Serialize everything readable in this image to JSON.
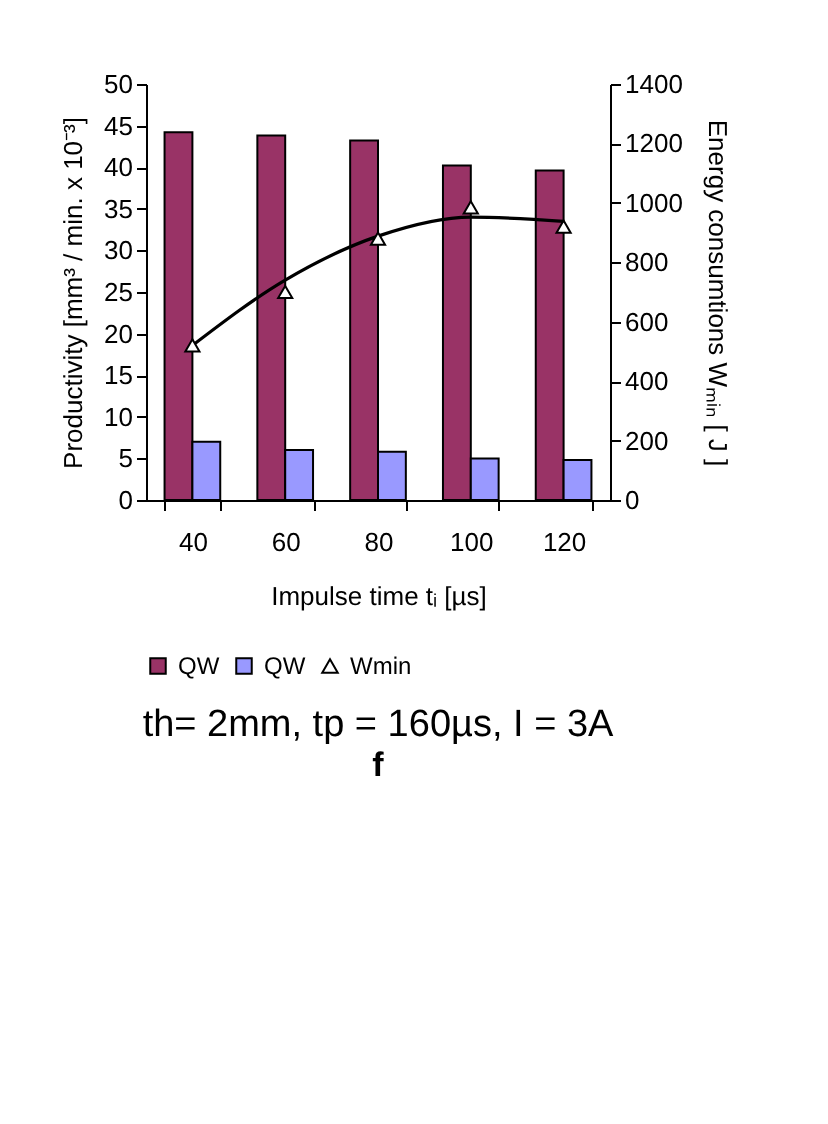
{
  "chart_data": {
    "type": "bar",
    "title": "th= 2mm, tp = 160µs, I = 3A",
    "annotations": [
      "f"
    ],
    "xlabel": "Impulse time tᵢ [µs]",
    "ylabel": "Productivity [mm³ / min. x 10⁻³]",
    "y2label": "Energy consumtions Wₘᵢₙ [ J ]",
    "categories": [
      "40",
      "60",
      "80",
      "100",
      "120"
    ],
    "series": [
      {
        "name": "QW",
        "color": "#993366",
        "values": [
          44.2,
          43.8,
          43.2,
          40.2,
          39.6
        ]
      },
      {
        "name": "QW",
        "color": "#9999ff",
        "values": [
          7,
          6,
          5.8,
          5,
          4.8
        ]
      },
      {
        "name": "Wmin",
        "type": "scatter",
        "marker": "triangle",
        "axis": "y2",
        "color": "#ffffff",
        "values": [
          520,
          700,
          880,
          985,
          920
        ]
      },
      {
        "type": "line",
        "axis": "y2",
        "color": "#000000",
        "values": [
          520,
          740,
          888,
          952,
          938
        ]
      }
    ],
    "ylim": [
      0,
      50
    ],
    "yticks": [
      0,
      5,
      10,
      15,
      20,
      25,
      30,
      35,
      40,
      45,
      50
    ],
    "y2lim": [
      0,
      1400
    ],
    "y2ticks": [
      0,
      200,
      400,
      600,
      800,
      1000,
      1200,
      1400
    ],
    "legend": "bottom"
  }
}
